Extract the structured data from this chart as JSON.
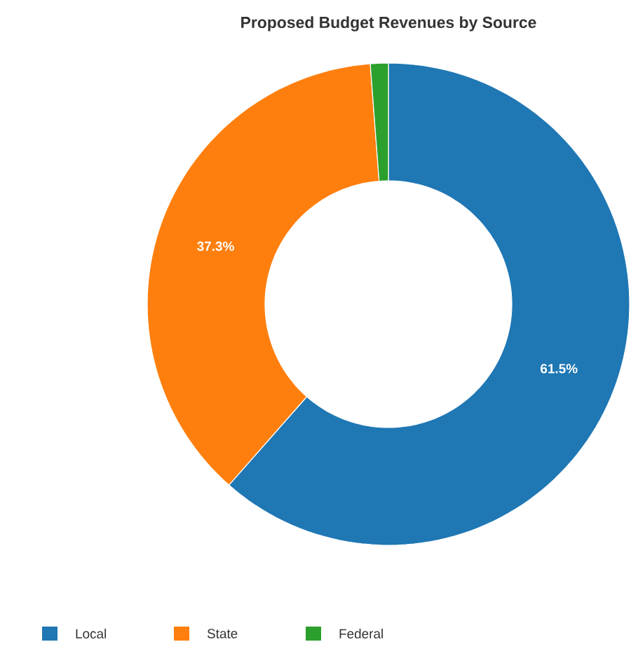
{
  "chart_data": {
    "type": "donut",
    "title": "Proposed Budget Revenues by Source",
    "categories": [
      "Local",
      "State",
      "Federal"
    ],
    "values": [
      61.5,
      37.3,
      1.2
    ],
    "colors": [
      "#1f77b4",
      "#ff7f0e",
      "#2ca02c"
    ],
    "value_labels": [
      "61.5%",
      "37.3%",
      null
    ],
    "legend": "bottom"
  }
}
